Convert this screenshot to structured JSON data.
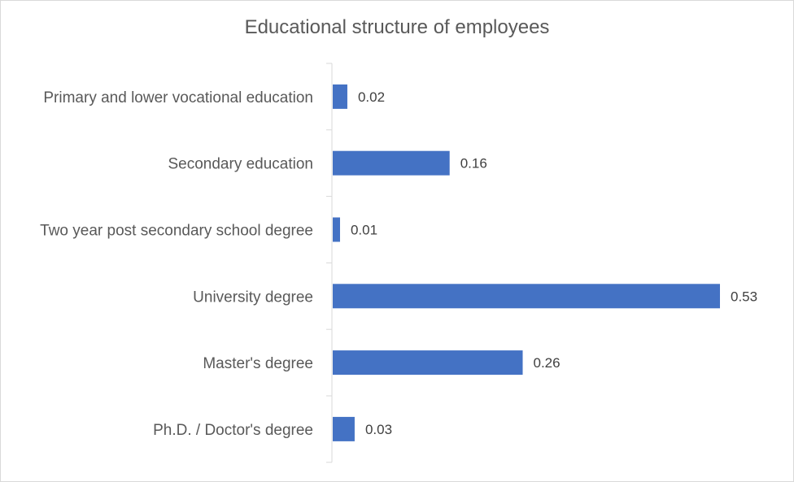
{
  "chart_data": {
    "type": "bar",
    "orientation": "horizontal",
    "title": "Educational structure of employees",
    "xlabel": "",
    "ylabel": "",
    "categories": [
      "Primary and lower vocational education",
      "Secondary education",
      "Two year post secondary school degree",
      "University degree",
      "Master's degree",
      "Ph.D. / Doctor's degree"
    ],
    "values": [
      0.02,
      0.16,
      0.01,
      0.53,
      0.26,
      0.03
    ],
    "data_labels": [
      "0.02",
      "0.16",
      "0.01",
      "0.53",
      "0.26",
      "0.03"
    ],
    "xlim": [
      0,
      0.53
    ],
    "grid": false,
    "legend": "none",
    "bar_color": "#4472c4"
  }
}
